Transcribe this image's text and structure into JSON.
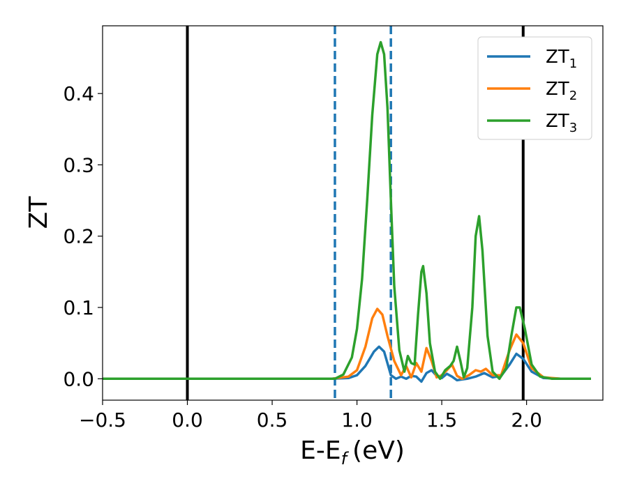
{
  "chart_data": {
    "type": "line",
    "xlabel": "E-E",
    "xlabel_sub": "f",
    "xlabel_unit": "(eV)",
    "ylabel": "ZT",
    "xlim": [
      -0.5,
      2.45
    ],
    "ylim": [
      -0.03,
      0.495
    ],
    "xticks": [
      -0.5,
      0.0,
      0.5,
      1.0,
      1.5,
      2.0
    ],
    "xtick_labels": [
      "−0.5",
      "0.0",
      "0.5",
      "1.0",
      "1.5",
      "2.0"
    ],
    "yticks": [
      0.0,
      0.1,
      0.2,
      0.3,
      0.4
    ],
    "ytick_labels": [
      "0.0",
      "0.1",
      "0.2",
      "0.3",
      "0.4"
    ],
    "grid": false,
    "legend_position": "top-right",
    "vlines": [
      {
        "x": 0.0,
        "style": "solid",
        "color": "#000000"
      },
      {
        "x": 1.98,
        "style": "solid",
        "color": "#000000"
      },
      {
        "x": 0.87,
        "style": "dashed",
        "color": "#1f77b4"
      },
      {
        "x": 1.2,
        "style": "dashed",
        "color": "#1f77b4"
      }
    ],
    "series": [
      {
        "name": "ZT",
        "sub": "1",
        "color": "#1f77b4",
        "x": [
          -0.5,
          0.85,
          0.95,
          1.0,
          1.05,
          1.1,
          1.13,
          1.16,
          1.2,
          1.23,
          1.26,
          1.29,
          1.32,
          1.35,
          1.38,
          1.41,
          1.44,
          1.47,
          1.5,
          1.53,
          1.56,
          1.59,
          1.62,
          1.65,
          1.7,
          1.75,
          1.8,
          1.85,
          1.9,
          1.94,
          1.98,
          2.03,
          2.1,
          2.2,
          2.38
        ],
        "y": [
          0.0,
          0.0,
          0.001,
          0.005,
          0.018,
          0.038,
          0.045,
          0.038,
          0.005,
          0.0,
          0.003,
          0.0,
          0.004,
          0.003,
          -0.004,
          0.008,
          0.012,
          0.004,
          0.001,
          0.007,
          0.003,
          -0.002,
          -0.001,
          0.0,
          0.003,
          0.008,
          0.002,
          0.004,
          0.02,
          0.035,
          0.028,
          0.01,
          0.001,
          0.0,
          0.0
        ]
      },
      {
        "name": "ZT",
        "sub": "2",
        "color": "#ff7f0e",
        "x": [
          -0.5,
          0.85,
          0.95,
          1.0,
          1.05,
          1.09,
          1.12,
          1.15,
          1.18,
          1.22,
          1.26,
          1.29,
          1.32,
          1.35,
          1.38,
          1.41,
          1.44,
          1.47,
          1.5,
          1.53,
          1.56,
          1.59,
          1.62,
          1.66,
          1.7,
          1.73,
          1.76,
          1.8,
          1.85,
          1.9,
          1.94,
          1.98,
          2.03,
          2.1,
          2.2,
          2.38
        ],
        "y": [
          0.0,
          0.0,
          0.003,
          0.012,
          0.045,
          0.085,
          0.098,
          0.09,
          0.06,
          0.025,
          0.005,
          0.018,
          0.002,
          0.022,
          0.01,
          0.043,
          0.025,
          0.002,
          0.005,
          0.012,
          0.02,
          0.004,
          0.0,
          0.005,
          0.012,
          0.01,
          0.014,
          0.005,
          0.005,
          0.04,
          0.062,
          0.05,
          0.015,
          0.002,
          0.0,
          0.0
        ]
      },
      {
        "name": "ZT",
        "sub": "3",
        "color": "#2ca02c",
        "x": [
          -0.5,
          0.87,
          0.92,
          0.97,
          1.0,
          1.03,
          1.06,
          1.09,
          1.12,
          1.14,
          1.16,
          1.18,
          1.2,
          1.22,
          1.25,
          1.28,
          1.3,
          1.32,
          1.34,
          1.36,
          1.38,
          1.39,
          1.41,
          1.43,
          1.46,
          1.49,
          1.52,
          1.55,
          1.57,
          1.59,
          1.61,
          1.63,
          1.65,
          1.68,
          1.7,
          1.72,
          1.74,
          1.77,
          1.8,
          1.84,
          1.88,
          1.91,
          1.94,
          1.96,
          1.99,
          2.03,
          2.08,
          2.15,
          2.25,
          2.38
        ],
        "y": [
          0.0,
          0.0,
          0.006,
          0.03,
          0.07,
          0.14,
          0.25,
          0.37,
          0.455,
          0.472,
          0.455,
          0.38,
          0.25,
          0.13,
          0.04,
          0.01,
          0.032,
          0.022,
          0.02,
          0.09,
          0.15,
          0.158,
          0.12,
          0.05,
          0.01,
          0.0,
          0.012,
          0.018,
          0.025,
          0.045,
          0.025,
          0.002,
          0.015,
          0.1,
          0.2,
          0.228,
          0.18,
          0.06,
          0.01,
          0.0,
          0.015,
          0.06,
          0.1,
          0.1,
          0.07,
          0.02,
          0.003,
          0.0,
          0.0,
          0.0
        ]
      }
    ]
  }
}
